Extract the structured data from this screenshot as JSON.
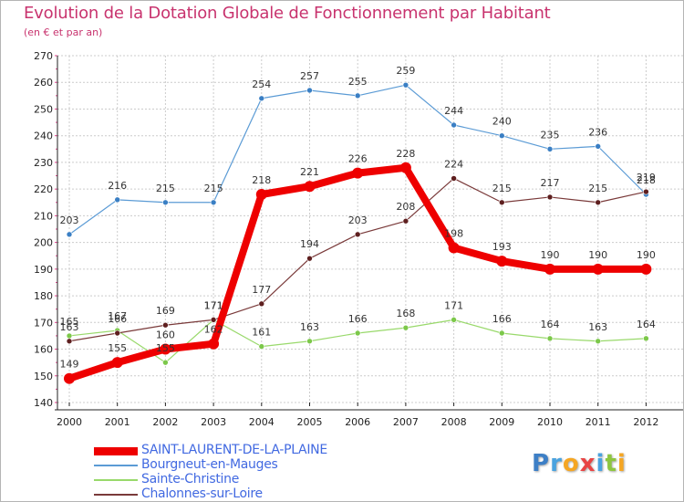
{
  "title": "Evolution de la Dotation Globale de Fonctionnement par Habitant",
  "subtitle": "(en € et par an)",
  "logo": "Proxiti",
  "colors": {
    "title": "#c8336e",
    "grid": "#cccccc",
    "axis": "#222222",
    "accent_ticks": "#e0408a"
  },
  "chart_data": {
    "type": "line",
    "title": "Evolution de la Dotation Globale de Fonctionnement par Habitant",
    "subtitle": "(en € et par an)",
    "xlabel": "",
    "ylabel": "",
    "ylim": [
      140,
      270
    ],
    "ytick_step": 10,
    "grid": true,
    "legend_position": "bottom-left",
    "categories": [
      "2000",
      "2001",
      "2002",
      "2003",
      "2004",
      "2005",
      "2006",
      "2007",
      "2008",
      "2009",
      "2010",
      "2011",
      "2012"
    ],
    "series": [
      {
        "name": "Bourgneut-en-Mauges",
        "color": "#5b9bd5",
        "marker": "#3a7fc4",
        "legend_color": "#4169e1",
        "width": 1.2,
        "values": [
          203,
          216,
          215,
          215,
          254,
          257,
          255,
          259,
          244,
          240,
          235,
          236,
          218
        ],
        "labels": [
          "203",
          "216",
          "215",
          "215",
          "254",
          "257",
          "255",
          "259",
          "244",
          "240",
          "235",
          "236",
          "218"
        ]
      },
      {
        "name": "Sainte-Christine",
        "color": "#99d96b",
        "marker": "#7cc84a",
        "legend_color": "#4169e1",
        "width": 1.2,
        "values": [
          165,
          167,
          155,
          171,
          161,
          163,
          166,
          168,
          171,
          166,
          164,
          163,
          164
        ],
        "labels": [
          "165",
          "167",
          "155",
          "171",
          "161",
          "163",
          "166",
          "168",
          "171",
          "166",
          "164",
          "163",
          "164"
        ]
      },
      {
        "name": "Chalonnes-sur-Loire",
        "color": "#7a3a3a",
        "marker": "#5e1f1f",
        "legend_color": "#4169e1",
        "width": 1.2,
        "values": [
          163,
          166,
          169,
          171,
          177,
          194,
          203,
          208,
          224,
          215,
          217,
          215,
          219
        ],
        "labels": [
          "163",
          "166",
          "169",
          "171",
          "177",
          "194",
          "203",
          "208",
          "224",
          "215",
          "217",
          "215",
          "219"
        ]
      },
      {
        "name": "SAINT-LAURENT-DE-LA-PLAINE",
        "color": "#ee0000",
        "marker": "#ee0000",
        "legend_color": "#4169e1",
        "width": 8,
        "values": [
          149,
          155,
          160,
          162,
          218,
          221,
          226,
          228,
          198,
          193,
          190,
          190,
          190
        ],
        "labels": [
          "149",
          "155",
          "160",
          "162",
          "218",
          "221",
          "226",
          "228",
          "198",
          "193",
          "190",
          "190",
          "190"
        ]
      }
    ]
  }
}
